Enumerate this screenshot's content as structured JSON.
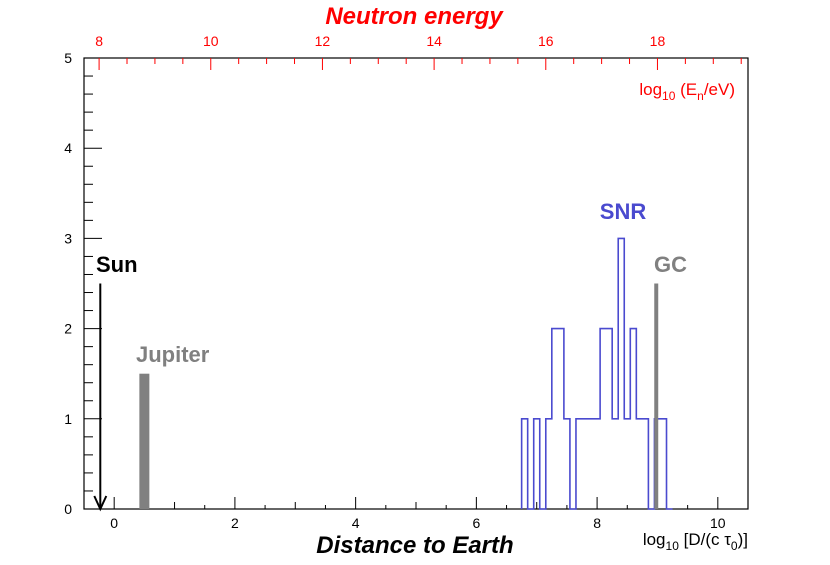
{
  "chart_data": {
    "type": "histogram",
    "title": "Distance to Earth",
    "xlabel": "log10 [D/(c τ0)]",
    "xlabel_parts": {
      "base": "log",
      "sub1": "10",
      "mid": " [D/(c τ",
      "sub2": "0",
      "end": ")]"
    },
    "ylabel": "",
    "xlim": [
      -0.5,
      10.5
    ],
    "ylim": [
      0,
      5
    ],
    "x_ticks": [
      "0",
      "2",
      "4",
      "6",
      "8",
      "10"
    ],
    "y_ticks": [
      "0",
      "1",
      "2",
      "3",
      "4",
      "5"
    ],
    "top_axis": {
      "title": "Neutron energy",
      "label_parts": {
        "base": "log",
        "sub1": "10",
        "mid": " (E",
        "sub2": "n",
        "end": "/eV)"
      },
      "ticks": [
        "8",
        "10",
        "12",
        "14",
        "16",
        "18"
      ],
      "tick_positions_bottom_units": [
        -0.25,
        1.6,
        3.45,
        5.3,
        7.15,
        9.0
      ],
      "color": "#ff0000"
    },
    "series": [
      {
        "name": "SNR",
        "color": "#4a4acf",
        "bin_edges": [
          6.75,
          6.85,
          6.95,
          7.05,
          7.15,
          7.25,
          7.35,
          7.45,
          7.55,
          7.65,
          7.75,
          7.85,
          7.95,
          8.05,
          8.15,
          8.25,
          8.35,
          8.45,
          8.55,
          8.65,
          8.75,
          8.85,
          8.95,
          9.05,
          9.15,
          9.25
        ],
        "counts": [
          1,
          0,
          1,
          0,
          1,
          2,
          2,
          1,
          0,
          1,
          1,
          1,
          1,
          2,
          2,
          1,
          3,
          1,
          2,
          1,
          1,
          0,
          1,
          1,
          0
        ]
      }
    ],
    "markers": [
      {
        "name": "Sun",
        "x": -0.23,
        "height": 2.5,
        "style": "arrow",
        "color": "#000000"
      },
      {
        "name": "Jupiter",
        "x": 0.5,
        "height": 1.5,
        "style": "bar",
        "color": "#808080"
      },
      {
        "name": "GC",
        "x": 8.98,
        "height": 2.5,
        "style": "line",
        "color": "#808080"
      }
    ]
  }
}
